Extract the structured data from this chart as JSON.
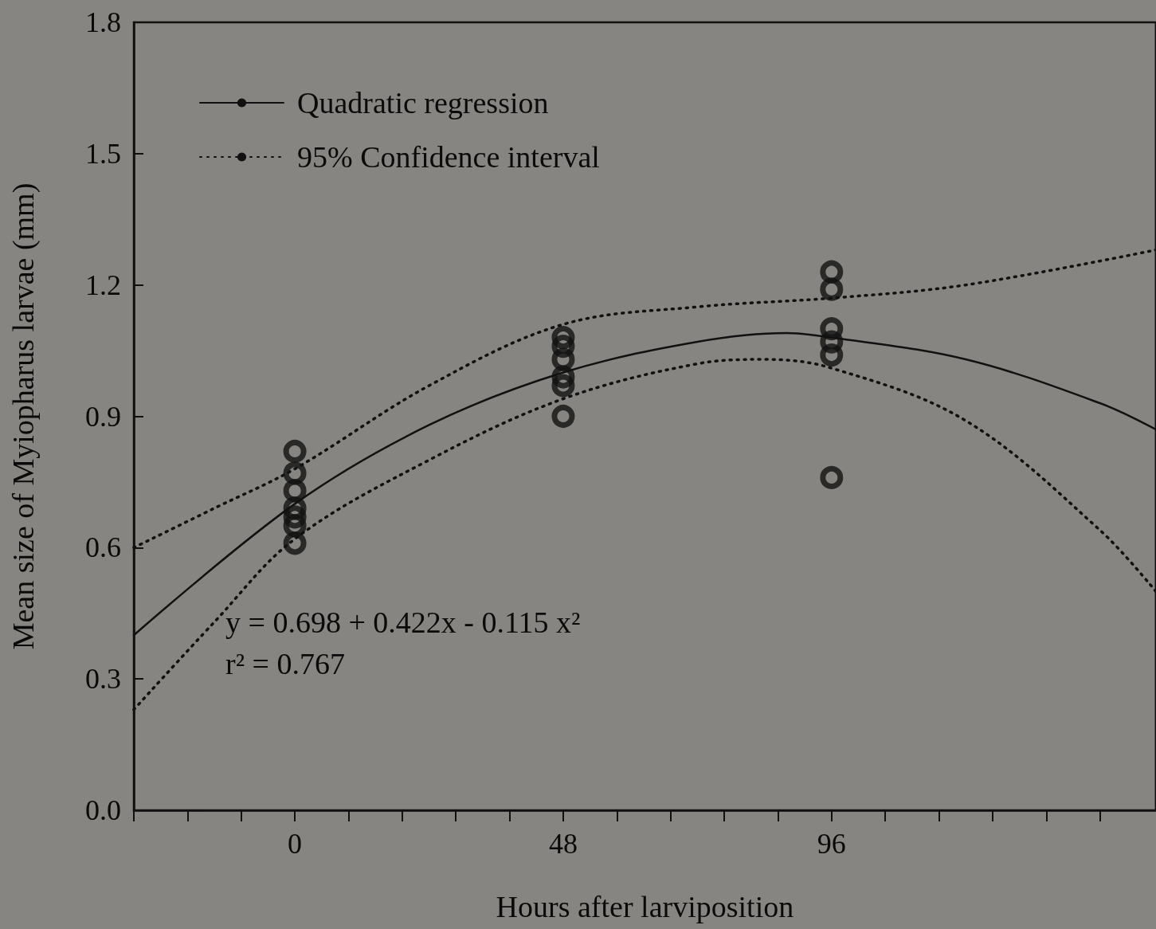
{
  "chart_data": {
    "type": "scatter",
    "xlabel": "Hours after larviposition",
    "ylabel": "Mean size of Myiopharus larvae (mm)",
    "xlim": [
      -28.8,
      154
    ],
    "xticks": [
      {
        "value": -28.8,
        "label": null
      },
      {
        "value": -19.2,
        "label": null
      },
      {
        "value": -9.6,
        "label": null
      },
      0,
      {
        "value": 9.6,
        "label": null
      },
      {
        "value": 19.2,
        "label": null
      },
      {
        "value": 28.8,
        "label": null
      },
      {
        "value": 38.4,
        "label": null
      },
      48,
      {
        "value": 57.6,
        "label": null
      },
      {
        "value": 67.2,
        "label": null
      },
      {
        "value": 76.8,
        "label": null
      },
      {
        "value": 86.4,
        "label": null
      },
      96,
      {
        "value": 105.6,
        "label": null
      },
      {
        "value": 115.2,
        "label": null
      },
      {
        "value": 124.8,
        "label": null
      },
      {
        "value": 134.4,
        "label": null
      },
      {
        "value": 144,
        "label": null
      }
    ],
    "ylim": [
      0,
      1.8
    ],
    "yticks": [
      {
        "value": 0,
        "label": "0.0"
      },
      0.3,
      0.6,
      0.9,
      1.2,
      1.5,
      1.8
    ],
    "legend": "top left",
    "grid": false,
    "marker": "circle",
    "annotations": [
      "y = 0.698 + 0.422x - 0.115 x²",
      "r² = 0.767"
    ],
    "series": [
      {
        "color": "#111111",
        "x": [
          0,
          0,
          0,
          0,
          0,
          0,
          0,
          48,
          48,
          48,
          48,
          48,
          48,
          96,
          96,
          96,
          96,
          96,
          96
        ],
        "values": [
          0.82,
          0.77,
          0.73,
          0.69,
          0.67,
          0.65,
          0.61,
          1.08,
          1.06,
          1.03,
          0.99,
          0.97,
          0.9,
          1.23,
          1.19,
          1.1,
          1.07,
          1.04,
          0.76
        ]
      },
      {
        "type": "line",
        "name": "Quadratic regression",
        "color": "#111111",
        "line_style": "solid",
        "marker": "none",
        "x": [
          -28.8,
          0,
          24,
          48,
          72,
          88,
          96,
          120,
          144,
          154
        ],
        "values": [
          0.4,
          0.7,
          0.88,
          1.0,
          1.07,
          1.09,
          1.08,
          1.03,
          0.93,
          0.87
        ]
      },
      {
        "type": "line",
        "name": "95% Confidence interval",
        "color": "#111111",
        "line_style": "dotted",
        "marker": "none",
        "x": [
          -28.8,
          -14.4,
          0,
          24,
          48,
          72,
          96,
          120,
          154
        ],
        "values": [
          0.6,
          0.69,
          0.78,
          0.97,
          1.11,
          1.15,
          1.17,
          1.2,
          1.28
        ]
      },
      {
        "type": "line",
        "color": "#111111",
        "line_style": "dotted",
        "marker": "none",
        "x": [
          -28.8,
          -14.4,
          0,
          24,
          48,
          72,
          84,
          96,
          120,
          144,
          154
        ],
        "values": [
          0.23,
          0.43,
          0.62,
          0.8,
          0.94,
          1.02,
          1.03,
          1.01,
          0.89,
          0.64,
          0.5
        ]
      }
    ]
  }
}
